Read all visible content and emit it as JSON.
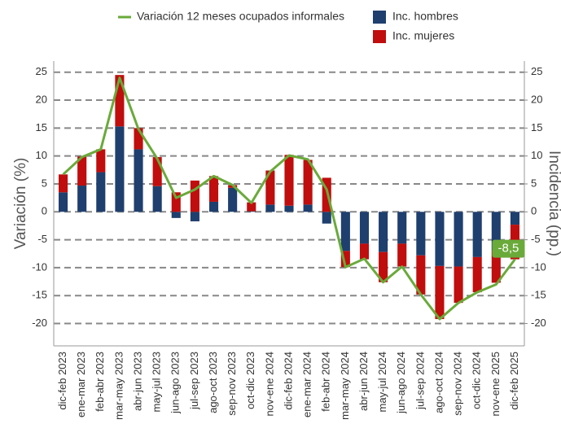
{
  "chart_data": {
    "type": "combo",
    "categories": [
      "dic-feb 2023",
      "ene-mar 2023",
      "feb-abr 2023",
      "mar-may 2023",
      "abr-jun 2023",
      "may-jul 2023",
      "jun-ago 2023",
      "jul-sep 2023",
      "ago-oct 2023",
      "sep-nov 2023",
      "oct-dic 2023",
      "nov-ene 2024",
      "dic-feb 2024",
      "ene-mar 2024",
      "feb-abr 2024",
      "mar-may 2024",
      "abr-jun 2024",
      "may-jul 2024",
      "jun-ago 2024",
      "jul-sep 2024",
      "ago-oct 2024",
      "sep-nov 2024",
      "oct-dic 2024",
      "nov-ene 2025",
      "dic-feb 2025"
    ],
    "series": [
      {
        "name": "Inc. hombres",
        "type": "bar",
        "color": "#1f3f6e",
        "values": [
          3.5,
          4.7,
          7.1,
          15.3,
          11.2,
          4.6,
          -1.1,
          -1.7,
          1.8,
          4.3,
          0.1,
          1.3,
          1.1,
          1.3,
          -2.1,
          -7,
          -5.7,
          -7.2,
          -5.7,
          -7.8,
          -9.7,
          -9.8,
          -8.1,
          -7,
          -2.3
        ]
      },
      {
        "name": "Inc. mujeres",
        "type": "bar",
        "color": "#c00d0d",
        "values": [
          3.2,
          5.2,
          4.1,
          9.2,
          3.8,
          5.2,
          3.5,
          5.6,
          4.6,
          0.5,
          1.6,
          6.1,
          9.1,
          8,
          6.1,
          -2.9,
          -2.8,
          -5.4,
          -4.1,
          -7,
          -9.5,
          -6.5,
          -6.3,
          -5.7,
          -6.2
        ]
      },
      {
        "name": "Variación 12 meses ocupados informales",
        "type": "line",
        "color": "#6aaa3a",
        "values": [
          6.7,
          9.8,
          11.2,
          24,
          14.8,
          9.5,
          2.5,
          4,
          6.4,
          4.8,
          1.6,
          7.2,
          10.1,
          9.4,
          4,
          -9.9,
          -8.4,
          -12.6,
          -9.8,
          -14.8,
          -19.2,
          -16.3,
          -14.4,
          -13,
          -8.5
        ],
        "value_labels": [
          null,
          null,
          null,
          null,
          null,
          null,
          null,
          null,
          null,
          null,
          null,
          null,
          null,
          null,
          null,
          null,
          null,
          null,
          null,
          null,
          null,
          null,
          null,
          null,
          "-8,5"
        ]
      }
    ],
    "y_label": "Variación (%)",
    "y2_label": "Incidencia (pp.)",
    "ylim": [
      -24,
      27
    ],
    "yticks": [
      -20,
      -15,
      -10,
      -5,
      0,
      5,
      10,
      15,
      20,
      25
    ],
    "y2lim": [
      -24,
      27
    ],
    "y2ticks": [
      -20,
      -15,
      -10,
      -5,
      0,
      5,
      10,
      15,
      20,
      25
    ],
    "grid": true
  }
}
